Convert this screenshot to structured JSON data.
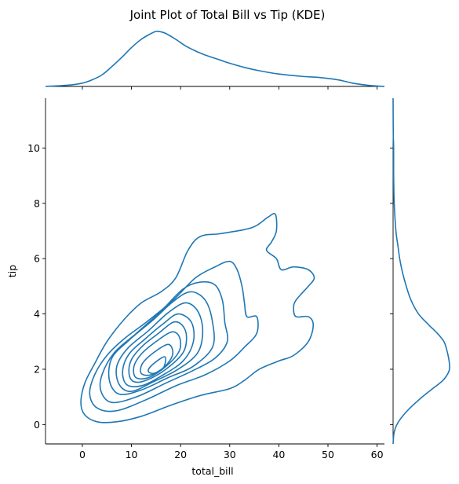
{
  "chart_data": {
    "type": "kde_joint",
    "title": "Joint Plot of Total Bill vs Tip (KDE)",
    "xlabel": "total_bill",
    "ylabel": "tip",
    "xlim": [
      -7.5,
      61.5
    ],
    "ylim": [
      -0.7,
      11.8
    ],
    "xticks": [
      0,
      10,
      20,
      30,
      40,
      50,
      60
    ],
    "yticks": [
      0,
      2,
      4,
      6,
      8,
      10
    ],
    "color": "#1f77b4",
    "grid": false,
    "contours": [
      [
        [
          39.3,
          7.6
        ],
        [
          37.8,
          7.5
        ],
        [
          35.5,
          7.2
        ],
        [
          33,
          7.05
        ],
        [
          28,
          6.9
        ],
        [
          24,
          6.8
        ],
        [
          21.5,
          6.3
        ],
        [
          19,
          5.3
        ],
        [
          16,
          4.8
        ],
        [
          12,
          4.4
        ],
        [
          8.5,
          3.8
        ],
        [
          5,
          3.0
        ],
        [
          2.5,
          2.2
        ],
        [
          0.5,
          1.5
        ],
        [
          -0.3,
          0.8
        ],
        [
          0.5,
          0.35
        ],
        [
          3,
          0.1
        ],
        [
          7,
          0.1
        ],
        [
          12,
          0.3
        ],
        [
          18,
          0.7
        ],
        [
          24,
          1.05
        ],
        [
          30,
          1.3
        ],
        [
          33,
          1.6
        ],
        [
          36,
          2.0
        ],
        [
          40,
          2.3
        ],
        [
          43,
          2.5
        ],
        [
          46,
          3.0
        ],
        [
          47,
          3.6
        ],
        [
          46,
          3.9
        ],
        [
          43.5,
          3.9
        ],
        [
          43,
          4.2
        ],
        [
          43.5,
          4.5
        ],
        [
          46,
          5.0
        ],
        [
          47.2,
          5.3
        ],
        [
          46,
          5.6
        ],
        [
          43,
          5.7
        ],
        [
          40.5,
          5.6
        ],
        [
          39.5,
          6.0
        ],
        [
          37.5,
          6.3
        ],
        [
          38.5,
          6.6
        ],
        [
          39.5,
          7.0
        ],
        [
          39.3,
          7.6
        ]
      ],
      [
        [
          30,
          5.9
        ],
        [
          27,
          5.7
        ],
        [
          23,
          5.3
        ],
        [
          18.5,
          4.5
        ],
        [
          13,
          3.7
        ],
        [
          8.5,
          3.1
        ],
        [
          5,
          2.5
        ],
        [
          2.5,
          1.8
        ],
        [
          1.5,
          1.1
        ],
        [
          3,
          0.6
        ],
        [
          7,
          0.5
        ],
        [
          13,
          0.9
        ],
        [
          19,
          1.4
        ],
        [
          25,
          1.8
        ],
        [
          30,
          2.3
        ],
        [
          33,
          2.8
        ],
        [
          35.5,
          3.3
        ],
        [
          35.5,
          3.9
        ],
        [
          33.5,
          3.9
        ],
        [
          33,
          4.4
        ],
        [
          32.5,
          5.0
        ],
        [
          31.5,
          5.6
        ],
        [
          30,
          5.9
        ]
      ],
      [
        [
          24,
          5.15
        ],
        [
          20.5,
          4.9
        ],
        [
          16,
          4.1
        ],
        [
          11,
          3.3
        ],
        [
          6.5,
          2.6
        ],
        [
          4,
          1.8
        ],
        [
          3.8,
          1.2
        ],
        [
          6,
          0.8
        ],
        [
          11,
          1.0
        ],
        [
          17,
          1.5
        ],
        [
          22.5,
          1.95
        ],
        [
          27,
          2.4
        ],
        [
          29.5,
          3.0
        ],
        [
          29,
          3.7
        ],
        [
          28.5,
          4.5
        ],
        [
          27,
          5.05
        ],
        [
          24,
          5.15
        ]
      ],
      [
        [
          22,
          4.8
        ],
        [
          18.5,
          4.45
        ],
        [
          14.5,
          3.8
        ],
        [
          9.5,
          3.05
        ],
        [
          6,
          2.4
        ],
        [
          5.5,
          1.6
        ],
        [
          7.5,
          1.1
        ],
        [
          12,
          1.25
        ],
        [
          17.5,
          1.7
        ],
        [
          22.5,
          2.1
        ],
        [
          26.5,
          2.8
        ],
        [
          26.5,
          3.7
        ],
        [
          25,
          4.5
        ],
        [
          22,
          4.8
        ]
      ],
      [
        [
          21,
          4.4
        ],
        [
          17.5,
          4.05
        ],
        [
          13.5,
          3.4
        ],
        [
          9.2,
          2.75
        ],
        [
          7.0,
          2.1
        ],
        [
          7.5,
          1.45
        ],
        [
          10,
          1.2
        ],
        [
          14.5,
          1.55
        ],
        [
          19.5,
          2.0
        ],
        [
          23.5,
          2.6
        ],
        [
          24.5,
          3.4
        ],
        [
          23.5,
          4.1
        ],
        [
          21,
          4.4
        ]
      ],
      [
        [
          19.5,
          4.0
        ],
        [
          16.5,
          3.65
        ],
        [
          12.8,
          3.1
        ],
        [
          9.5,
          2.55
        ],
        [
          8.2,
          1.95
        ],
        [
          9,
          1.45
        ],
        [
          12,
          1.4
        ],
        [
          16,
          1.75
        ],
        [
          20.5,
          2.3
        ],
        [
          22.6,
          3.0
        ],
        [
          22.2,
          3.7
        ],
        [
          19.5,
          4.0
        ]
      ],
      [
        [
          18.5,
          3.7
        ],
        [
          15.5,
          3.3
        ],
        [
          12.3,
          2.85
        ],
        [
          10,
          2.35
        ],
        [
          9.5,
          1.85
        ],
        [
          10.5,
          1.55
        ],
        [
          13,
          1.6
        ],
        [
          17,
          2.0
        ],
        [
          20.5,
          2.6
        ],
        [
          21.2,
          3.2
        ],
        [
          20.3,
          3.6
        ],
        [
          18.5,
          3.7
        ]
      ],
      [
        [
          18.2,
          3.35
        ],
        [
          15,
          3.0
        ],
        [
          12,
          2.55
        ],
        [
          10.5,
          2.1
        ],
        [
          10.9,
          1.7
        ],
        [
          13.5,
          1.7
        ],
        [
          17,
          2.1
        ],
        [
          19.7,
          2.65
        ],
        [
          19.8,
          3.15
        ],
        [
          18.2,
          3.35
        ]
      ],
      [
        [
          17.5,
          2.9
        ],
        [
          14.5,
          2.6
        ],
        [
          12.2,
          2.2
        ],
        [
          12,
          1.85
        ],
        [
          14,
          1.8
        ],
        [
          16.8,
          2.1
        ],
        [
          18.4,
          2.55
        ],
        [
          17.5,
          2.9
        ]
      ],
      [
        [
          16.8,
          2.45
        ],
        [
          14.5,
          2.2
        ],
        [
          13.4,
          1.95
        ],
        [
          14.5,
          1.85
        ],
        [
          16.5,
          2.05
        ],
        [
          16.8,
          2.45
        ]
      ]
    ],
    "marginal_x": [
      [
        -7.5,
        0.0
      ],
      [
        -3,
        0.0015
      ],
      [
        0,
        0.004
      ],
      [
        2,
        0.008
      ],
      [
        4,
        0.014
      ],
      [
        6,
        0.024
      ],
      [
        8,
        0.035
      ],
      [
        10,
        0.047
      ],
      [
        12,
        0.057
      ],
      [
        14,
        0.064
      ],
      [
        15,
        0.0665
      ],
      [
        16,
        0.066
      ],
      [
        17,
        0.064
      ],
      [
        19,
        0.057
      ],
      [
        21,
        0.049
      ],
      [
        23,
        0.043
      ],
      [
        25,
        0.038
      ],
      [
        28,
        0.032
      ],
      [
        30,
        0.028
      ],
      [
        33,
        0.023
      ],
      [
        36,
        0.019
      ],
      [
        40,
        0.015
      ],
      [
        45,
        0.012
      ],
      [
        48,
        0.011
      ],
      [
        52,
        0.008
      ],
      [
        55,
        0.004
      ],
      [
        58,
        0.0015
      ],
      [
        60,
        0.0005
      ],
      [
        61.5,
        0.0
      ]
    ],
    "marginal_y": [
      [
        -0.7,
        0.0
      ],
      [
        -0.3,
        0.005
      ],
      [
        0,
        0.02
      ],
      [
        0.3,
        0.05
      ],
      [
        0.6,
        0.09
      ],
      [
        1,
        0.155
      ],
      [
        1.3,
        0.21
      ],
      [
        1.6,
        0.265
      ],
      [
        1.9,
        0.295
      ],
      [
        2.1,
        0.3
      ],
      [
        2.4,
        0.295
      ],
      [
        2.7,
        0.285
      ],
      [
        3,
        0.27
      ],
      [
        3.3,
        0.235
      ],
      [
        3.6,
        0.19
      ],
      [
        4,
        0.135
      ],
      [
        4.5,
        0.095
      ],
      [
        5,
        0.07
      ],
      [
        5.5,
        0.05
      ],
      [
        6,
        0.035
      ],
      [
        6.5,
        0.025
      ],
      [
        7,
        0.015
      ],
      [
        8,
        0.006
      ],
      [
        9,
        0.003
      ],
      [
        10,
        0.003
      ],
      [
        10.5,
        0.001
      ],
      [
        11.8,
        0.0
      ]
    ]
  }
}
